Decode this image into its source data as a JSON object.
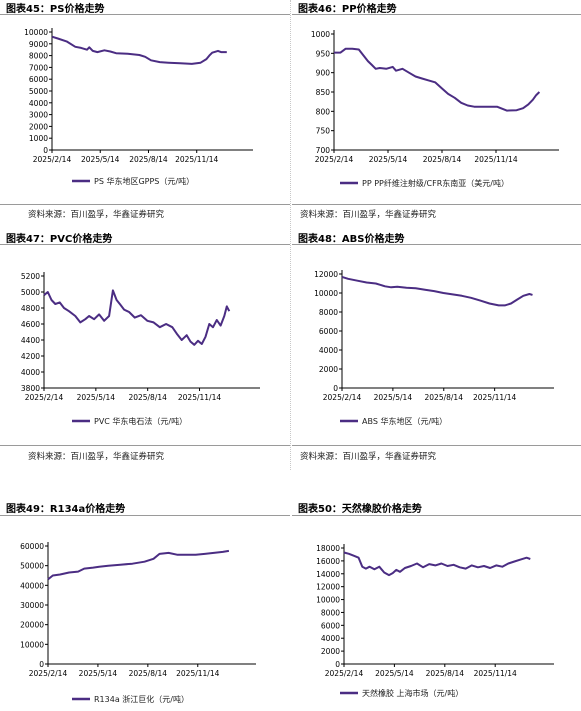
{
  "style": {
    "line_color": "#4b2d83",
    "axis_color": "#000000"
  },
  "panels": [
    {
      "title": "图表45：PS价格走势",
      "source": "资料来源：百川盈孚，华鑫证券研究",
      "chart_data": {
        "type": "line",
        "x_ticks": [
          "2025/2/14",
          "2025/5/14",
          "2025/8/14",
          "2025/11/14"
        ],
        "y_ticks": [
          0,
          1000,
          2000,
          3000,
          4000,
          5000,
          6000,
          7000,
          8000,
          9000,
          10000
        ],
        "ylim": [
          0,
          10000
        ],
        "x_range": [
          0,
          345
        ],
        "series": [
          {
            "name": "PS 华东地区GPPS（元/吨）",
            "x": [
              0,
              10,
              25,
              40,
              50,
              60,
              64,
              70,
              78,
              90,
              100,
              110,
              130,
              150,
              160,
              170,
              185,
              200,
              220,
              240,
              255,
              265,
              270,
              275,
              285,
              290,
              300
            ],
            "y": [
              9600,
              9450,
              9200,
              8750,
              8650,
              8500,
              8700,
              8400,
              8300,
              8450,
              8350,
              8200,
              8150,
              8050,
              7900,
              7600,
              7450,
              7400,
              7350,
              7300,
              7400,
              7700,
              8000,
              8250,
              8400,
              8300,
              8300
            ]
          }
        ]
      }
    },
    {
      "title": "图表46：PP价格走势",
      "source": "资料来源：百川盈孚，华鑫证券研究",
      "chart_data": {
        "type": "line",
        "x_ticks": [
          "2025/2/14",
          "2025/5/14",
          "2025/8/14",
          "2025/11/14"
        ],
        "y_ticks": [
          700,
          750,
          800,
          850,
          900,
          950,
          1000
        ],
        "ylim": [
          700,
          1000
        ],
        "x_range": [
          0,
          345
        ],
        "series": [
          {
            "name": "PP PP纤维注射级/CFR东南亚（美元/吨）",
            "x": [
              0,
              10,
              18,
              28,
              38,
              45,
              52,
              58,
              64,
              70,
              80,
              90,
              95,
              105,
              115,
              125,
              135,
              145,
              155,
              165,
              175,
              185,
              195,
              205,
              215,
              230,
              240,
              250,
              265,
              280,
              290,
              298,
              305,
              310,
              315
            ],
            "y": [
              952,
              952,
              962,
              962,
              960,
              945,
              930,
              920,
              910,
              912,
              910,
              915,
              905,
              910,
              900,
              890,
              885,
              880,
              875,
              860,
              845,
              835,
              822,
              815,
              812,
              812,
              812,
              812,
              802,
              803,
              808,
              818,
              830,
              842,
              850
            ]
          }
        ]
      }
    },
    {
      "title": "图表47：PVC价格走势",
      "source": "资料来源：百川盈孚，华鑫证券研究",
      "chart_data": {
        "type": "line",
        "x_ticks": [
          "2025/2/14",
          "2025/5/14",
          "2025/8/14",
          "2025/11/14"
        ],
        "y_ticks": [
          3800,
          4000,
          4200,
          4400,
          4600,
          4800,
          5000,
          5200
        ],
        "ylim": [
          3800,
          5200
        ],
        "x_range": [
          0,
          345
        ],
        "series": [
          {
            "name": "PVC 华东电石法（元/吨）",
            "x": [
              0,
              6,
              12,
              18,
              25,
              32,
              40,
              50,
              58,
              66,
              72,
              80,
              88,
              96,
              104,
              110,
              116,
              122,
              128,
              136,
              145,
              155,
              165,
              175,
              185,
              195,
              205,
              212,
              220,
              228,
              234,
              240,
              246,
              252,
              258,
              264,
              270,
              276,
              282,
              288,
              292,
              296
            ],
            "y": [
              4960,
              5000,
              4900,
              4850,
              4870,
              4800,
              4760,
              4700,
              4620,
              4660,
              4700,
              4660,
              4720,
              4640,
              4700,
              5020,
              4900,
              4840,
              4780,
              4750,
              4680,
              4710,
              4640,
              4620,
              4560,
              4600,
              4560,
              4480,
              4400,
              4460,
              4380,
              4340,
              4390,
              4350,
              4440,
              4600,
              4560,
              4650,
              4580,
              4700,
              4820,
              4760
            ]
          }
        ]
      }
    },
    {
      "title": "图表48：ABS价格走势",
      "source": "资料来源：百川盈孚，华鑫证券研究",
      "chart_data": {
        "type": "line",
        "x_ticks": [
          "2025/2/14",
          "2025/5/14",
          "2025/8/14",
          "2025/11/14"
        ],
        "y_ticks": [
          0,
          2000,
          4000,
          6000,
          8000,
          10000,
          12000
        ],
        "ylim": [
          0,
          12000
        ],
        "x_range": [
          0,
          345
        ],
        "series": [
          {
            "name": "ABS 华东地区（元/吨）",
            "x": [
              0,
              10,
              25,
              40,
              55,
              70,
              80,
              90,
              105,
              120,
              135,
              150,
              165,
              180,
              195,
              210,
              225,
              240,
              255,
              265,
              275,
              285,
              295,
              305,
              310
            ],
            "y": [
              11700,
              11500,
              11300,
              11100,
              11000,
              10700,
              10600,
              10650,
              10550,
              10500,
              10350,
              10200,
              10000,
              9850,
              9700,
              9500,
              9200,
              8900,
              8700,
              8700,
              8900,
              9300,
              9700,
              9900,
              9800
            ]
          }
        ]
      }
    },
    {
      "title": "图表49：R134a价格走势",
      "source": "",
      "chart_data": {
        "type": "line",
        "x_ticks": [
          "2025/2/14",
          "2025/5/14",
          "2025/8/14",
          "2025/11/14"
        ],
        "y_ticks": [
          0,
          10000,
          20000,
          30000,
          40000,
          50000,
          60000
        ],
        "ylim": [
          0,
          60000
        ],
        "x_range": [
          0,
          345
        ],
        "series": [
          {
            "name": "R134a 浙江巨化（元/吨）",
            "x": [
              0,
              8,
              20,
              35,
              50,
              60,
              75,
              85,
              100,
              120,
              140,
              160,
              175,
              185,
              200,
              215,
              230,
              245,
              260,
              275,
              290,
              300
            ],
            "y": [
              43000,
              45000,
              45500,
              46500,
              47000,
              48500,
              49000,
              49500,
              50000,
              50500,
              51000,
              52000,
              53500,
              56000,
              56500,
              55500,
              55500,
              55500,
              56000,
              56500,
              57000,
              57500
            ]
          }
        ]
      }
    },
    {
      "title": "图表50：天然橡胶价格走势",
      "source": "",
      "chart_data": {
        "type": "line",
        "x_ticks": [
          "2025/2/14",
          "2025/5/14",
          "2025/8/14",
          "2025/11/14"
        ],
        "y_ticks": [
          0,
          2000,
          4000,
          6000,
          8000,
          10000,
          12000,
          14000,
          16000,
          18000
        ],
        "ylim": [
          0,
          18000
        ],
        "x_range": [
          0,
          345
        ],
        "series": [
          {
            "name": "天然橡胶 上海市场（元/吨）",
            "x": [
              0,
              8,
              16,
              24,
              30,
              36,
              42,
              50,
              58,
              66,
              74,
              80,
              86,
              92,
              100,
              110,
              120,
              130,
              140,
              150,
              160,
              170,
              180,
              190,
              200,
              210,
              220,
              230,
              240,
              250,
              260,
              270,
              280,
              290,
              300,
              306
            ],
            "y": [
              17300,
              17100,
              16800,
              16500,
              15100,
              14800,
              15100,
              14700,
              15100,
              14200,
              13800,
              14100,
              14600,
              14300,
              14900,
              15200,
              15600,
              15000,
              15500,
              15300,
              15600,
              15200,
              15400,
              15000,
              14800,
              15300,
              15000,
              15200,
              14900,
              15300,
              15100,
              15600,
              15900,
              16200,
              16500,
              16300
            ]
          }
        ]
      }
    }
  ]
}
